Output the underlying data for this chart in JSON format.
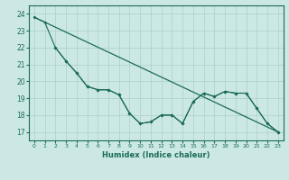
{
  "xlabel": "Humidex (Indice chaleur)",
  "line1_x": [
    0,
    23
  ],
  "line1_y": [
    23.8,
    17.0
  ],
  "line2_x": [
    0,
    1,
    2,
    3,
    4,
    5,
    6,
    7,
    8,
    9,
    10,
    11,
    12,
    13,
    14,
    15,
    16,
    17,
    18,
    19,
    20,
    21,
    22,
    23
  ],
  "line2_y": [
    23.8,
    23.5,
    22.0,
    21.2,
    20.5,
    19.7,
    19.5,
    19.5,
    19.2,
    18.1,
    17.5,
    17.6,
    18.0,
    18.0,
    17.5,
    18.8,
    19.3,
    19.1,
    19.4,
    19.3,
    19.3,
    18.4,
    17.5,
    17.0
  ],
  "line3_x": [
    2,
    3,
    4,
    5,
    6,
    7,
    8,
    9,
    10,
    11,
    12,
    13,
    14,
    15,
    16,
    17,
    18,
    19,
    20,
    21,
    22,
    23
  ],
  "line3_y": [
    22.0,
    21.2,
    20.5,
    19.7,
    19.5,
    19.5,
    19.2,
    18.1,
    17.5,
    17.6,
    18.0,
    18.0,
    17.5,
    18.8,
    19.3,
    19.1,
    19.4,
    19.3,
    19.3,
    18.4,
    17.5,
    17.0
  ],
  "color": "#1a6b5a",
  "bg_color": "#cce8e4",
  "grid_color": "#aacfcb",
  "ylim": [
    16.5,
    24.5
  ],
  "xlim": [
    -0.5,
    23.5
  ],
  "yticks": [
    17,
    18,
    19,
    20,
    21,
    22,
    23,
    24
  ],
  "xticks": [
    0,
    1,
    2,
    3,
    4,
    5,
    6,
    7,
    8,
    9,
    10,
    11,
    12,
    13,
    14,
    15,
    16,
    17,
    18,
    19,
    20,
    21,
    22,
    23
  ]
}
